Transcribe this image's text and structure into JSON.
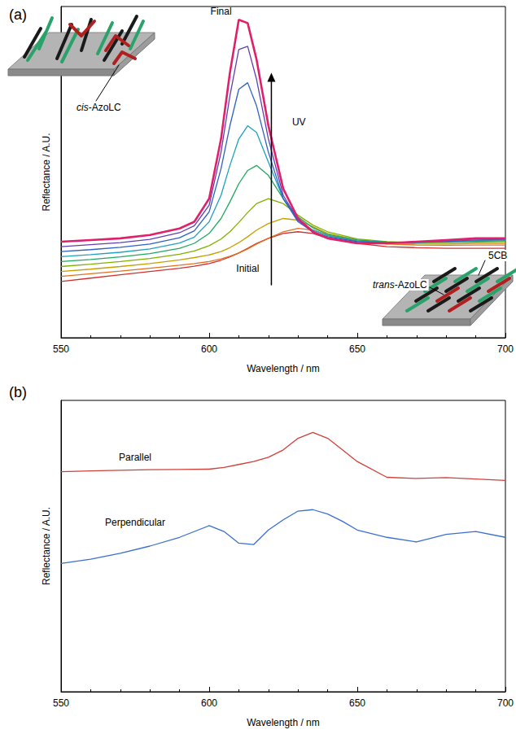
{
  "chart_data": [
    {
      "type": "line",
      "title": "(a)",
      "xlabel": "Wavelength / nm",
      "ylabel": "Reflectance / A.U.",
      "x": [
        550,
        560,
        570,
        580,
        590,
        595,
        600,
        604,
        607,
        610,
        613,
        616,
        620,
        625,
        630,
        635,
        640,
        650,
        660,
        670,
        680,
        690,
        700
      ],
      "series": [
        {
          "name": "Initial",
          "color": "#d03030",
          "values": [
            17,
            18,
            19,
            20,
            21,
            21.6,
            22.4,
            23.4,
            24.4,
            25.6,
            27,
            28.5,
            30,
            31.5,
            32,
            31.5,
            30,
            28.5,
            27.5,
            27.2,
            27,
            27,
            27
          ]
        },
        {
          "color": "#e07020",
          "values": [
            18.5,
            19.3,
            20.1,
            21,
            21.9,
            22.4,
            23,
            23.8,
            24.6,
            25.6,
            26.8,
            28.3,
            30,
            32,
            33,
            32.5,
            31,
            29.2,
            28.3,
            28,
            27.9,
            28,
            28
          ]
        },
        {
          "color": "#c8a000",
          "values": [
            20,
            20.7,
            21.5,
            22.4,
            23.5,
            24.2,
            25,
            26,
            27.2,
            28.7,
            30.5,
            32.5,
            34.5,
            36,
            35.5,
            33.5,
            31.5,
            29.5,
            28.6,
            28.3,
            28.3,
            28.5,
            28.5
          ]
        },
        {
          "color": "#80b000",
          "values": [
            21.5,
            22.2,
            23,
            23.9,
            25.2,
            26.2,
            27.8,
            29.8,
            32,
            34.8,
            37.8,
            40.5,
            42,
            40.5,
            37,
            34,
            32,
            29.8,
            29,
            28.7,
            28.7,
            28.9,
            29
          ]
        },
        {
          "color": "#20a860",
          "values": [
            23,
            23.6,
            24.4,
            25.4,
            27,
            28.5,
            31.5,
            36,
            41,
            46.5,
            50.5,
            52,
            49,
            42,
            36.5,
            33.2,
            31.2,
            29.5,
            28.9,
            28.8,
            28.9,
            29.1,
            29.3
          ]
        },
        {
          "color": "#20a0c0",
          "values": [
            24.5,
            25.1,
            25.8,
            26.8,
            28.6,
            30.4,
            35,
            43,
            52,
            60,
            64,
            62,
            53,
            42,
            35.5,
            32.5,
            30.8,
            29.2,
            28.8,
            28.8,
            29,
            29.3,
            29.5
          ]
        },
        {
          "color": "#3060c0",
          "values": [
            26,
            26.6,
            27.3,
            28.3,
            30.2,
            32.3,
            38,
            51,
            64,
            75,
            77,
            70,
            56,
            42,
            35,
            32,
            30.5,
            29,
            28.7,
            28.8,
            29.1,
            29.5,
            29.7
          ]
        },
        {
          "color": "#6040b0",
          "values": [
            27.5,
            28.1,
            28.7,
            29.7,
            31.7,
            33.8,
            40,
            56,
            73,
            87,
            88,
            78,
            60,
            43,
            35.5,
            31.8,
            30.2,
            28.8,
            28.6,
            28.9,
            29.3,
            29.8,
            30
          ]
        },
        {
          "name": "Final",
          "color": "#e0206a",
          "values": [
            29,
            29.5,
            30,
            31,
            33,
            35,
            42,
            60,
            80,
            96,
            95,
            84,
            64,
            45,
            36,
            32,
            30,
            28.5,
            28.5,
            29,
            29.5,
            30,
            30
          ]
        }
      ],
      "annotations": [
        "UV",
        "cis-AzoLC",
        "5CB",
        "trans-AzoLC"
      ],
      "xlim": [
        550,
        700
      ],
      "xticks": [
        550,
        600,
        650,
        700
      ],
      "ylim": [
        0,
        100
      ],
      "tick_labels": "x",
      "grid": false
    },
    {
      "type": "line",
      "title": "(b)",
      "xlabel": "Wavelength / nm",
      "ylabel": "Reflectance / A.U.",
      "x": [
        550,
        560,
        570,
        580,
        590,
        600,
        605,
        610,
        615,
        620,
        625,
        630,
        635,
        640,
        645,
        650,
        660,
        670,
        680,
        690,
        700
      ],
      "series": [
        {
          "name": "Parallel",
          "color": "#d0403a",
          "values": [
            75.5,
            75.8,
            76,
            76.2,
            76.3,
            76.4,
            77,
            78,
            79,
            80.5,
            83,
            87,
            89,
            87,
            83,
            79,
            73.6,
            73.2,
            73.5,
            73,
            72.5
          ]
        },
        {
          "name": "Perpendicular",
          "color": "#3a6fd0",
          "values": [
            44,
            45.5,
            47.5,
            50,
            53,
            57,
            55,
            51,
            50.5,
            55.5,
            59,
            62,
            62.5,
            61,
            58.5,
            55.5,
            53,
            51.4,
            54,
            55,
            53
          ]
        }
      ],
      "xlim": [
        550,
        700
      ],
      "xticks": [
        550,
        600,
        650,
        700
      ],
      "ylim": [
        0,
        100
      ],
      "tick_labels": "x",
      "grid": false
    }
  ]
}
